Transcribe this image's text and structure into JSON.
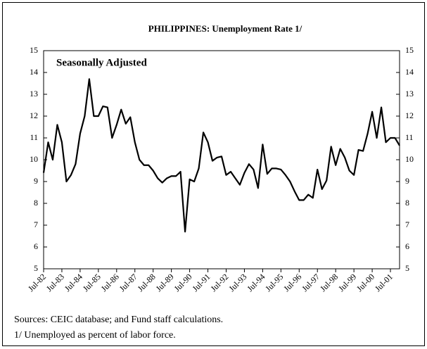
{
  "chart_data": {
    "type": "line",
    "title": "PHILIPPINES:  Unemployment Rate 1/",
    "annotation": "Seasonally Adjusted",
    "notes": [
      "Sources: CEIC database; and Fund staff calculations.",
      "1/ Unemployed as percent of labor force."
    ],
    "categories": [
      "Jul-82",
      null,
      null,
      null,
      "Jul-83",
      null,
      null,
      null,
      "Jul-84",
      null,
      null,
      null,
      "Jul-85",
      null,
      null,
      null,
      "Jul-86",
      null,
      null,
      null,
      "Jul-87",
      null,
      null,
      null,
      "Jul-88",
      null,
      null,
      null,
      "Jul-89",
      null,
      null,
      null,
      "Jul-90",
      null,
      null,
      null,
      "Jul-91",
      null,
      null,
      null,
      "Jul-92",
      null,
      null,
      null,
      "Jul-93",
      null,
      null,
      null,
      "Jul-94",
      null,
      null,
      null,
      "Jul-95",
      null,
      null,
      null,
      "Jul-96",
      null,
      null,
      null,
      "Jul-97",
      null,
      null,
      null,
      "Jul-98",
      null,
      null,
      null,
      "Jul-99",
      null,
      null,
      null,
      "Jul-00",
      null,
      null,
      null,
      "Jul-01",
      null,
      null
    ],
    "values": [
      9.4,
      10.8,
      10.0,
      11.6,
      10.8,
      9.0,
      9.3,
      9.8,
      11.2,
      12.0,
      13.7,
      12.0,
      12.0,
      12.45,
      12.4,
      11.0,
      11.6,
      12.3,
      11.65,
      11.95,
      10.8,
      10.0,
      9.75,
      9.75,
      9.5,
      9.15,
      8.95,
      9.15,
      9.25,
      9.25,
      9.45,
      6.7,
      9.1,
      9.0,
      9.6,
      11.25,
      10.8,
      9.95,
      10.1,
      10.15,
      9.3,
      9.45,
      9.15,
      8.85,
      9.4,
      9.8,
      9.55,
      8.7,
      10.7,
      9.35,
      9.6,
      9.6,
      9.55,
      9.3,
      9.0,
      8.55,
      8.15,
      8.15,
      8.4,
      8.25,
      9.55,
      8.65,
      9.05,
      10.6,
      9.75,
      10.5,
      10.1,
      9.5,
      9.3,
      10.45,
      10.4,
      11.2,
      12.2,
      11.0,
      12.4,
      10.8,
      11.0,
      11.0,
      10.65
    ],
    "color": "#000000",
    "ylim": [
      5,
      15
    ],
    "yticks": [
      5,
      6,
      7,
      8,
      9,
      10,
      11,
      12,
      13,
      14,
      15
    ],
    "y2lim": [
      5,
      15
    ],
    "y2ticks": [
      5,
      6,
      7,
      8,
      9,
      10,
      11,
      12,
      13,
      14,
      15
    ]
  }
}
